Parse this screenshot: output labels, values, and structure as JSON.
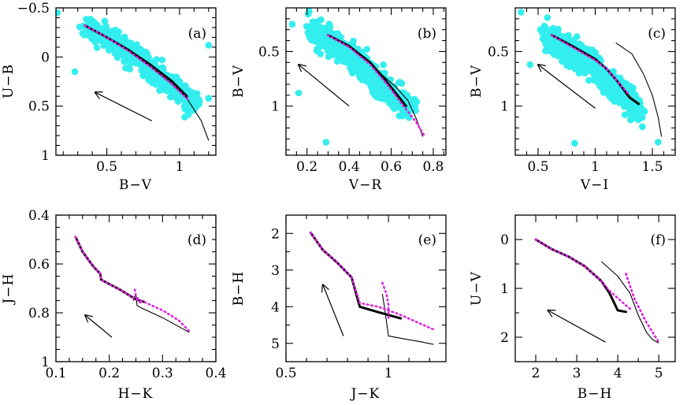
{
  "colors": {
    "points": "#33eeee",
    "model_thick": "#000000",
    "model_dotted": "#dd22dd",
    "model_thin": "#000000",
    "arrow": "#000000"
  },
  "chart_data": [
    {
      "type": "scatter",
      "tag": "(a)",
      "xlabel": "B−V",
      "ylabel": "U−B",
      "xlim": [
        0.15,
        1.25
      ],
      "ylim": [
        -0.5,
        1.0
      ],
      "y_inverted": true,
      "xticks": [
        {
          "v": 0.5,
          "label": "0.5"
        },
        {
          "v": 1.0,
          "label": "1"
        }
      ],
      "xminor": [
        0.2,
        0.3,
        0.4,
        0.6,
        0.7,
        0.8,
        0.9,
        1.1,
        1.2
      ],
      "yticks": [
        {
          "v": -0.5,
          "label": "−0.5"
        },
        {
          "v": 0.0,
          "label": "0"
        },
        {
          "v": 0.5,
          "label": "0.5"
        },
        {
          "v": 1.0,
          "label": "1"
        }
      ],
      "yminor": [
        -0.4,
        -0.3,
        -0.2,
        -0.1,
        0.1,
        0.2,
        0.3,
        0.4,
        0.6,
        0.7,
        0.8,
        0.9
      ],
      "scatter_cloud": {
        "n": 600,
        "seed": 11,
        "x_range": [
          0.35,
          1.12
        ],
        "trend": [
          [
            0.35,
            -0.3
          ],
          [
            0.55,
            -0.15
          ],
          [
            0.75,
            0.05
          ],
          [
            0.95,
            0.3
          ],
          [
            1.1,
            0.48
          ]
        ],
        "spread": 0.1
      },
      "outliers": [
        [
          0.16,
          -0.45
        ],
        [
          0.28,
          0.15
        ],
        [
          1.2,
          0.42
        ],
        [
          1.2,
          -0.12
        ]
      ],
      "model_thick": [
        [
          0.35,
          -0.32
        ],
        [
          0.5,
          -0.2
        ],
        [
          0.65,
          -0.07
        ],
        [
          0.8,
          0.08
        ],
        [
          0.95,
          0.25
        ],
        [
          1.05,
          0.4
        ]
      ],
      "model_dotted": [
        [
          0.35,
          -0.32
        ],
        [
          0.5,
          -0.2
        ],
        [
          0.65,
          -0.06
        ],
        [
          0.8,
          0.1
        ],
        [
          0.95,
          0.28
        ],
        [
          1.07,
          0.45
        ]
      ],
      "model_thin": [
        [
          0.35,
          -0.32
        ],
        [
          0.5,
          -0.2
        ],
        [
          0.65,
          -0.06
        ],
        [
          0.8,
          0.1
        ],
        [
          0.95,
          0.28
        ],
        [
          1.05,
          0.42
        ],
        [
          1.15,
          0.65
        ],
        [
          1.2,
          0.85
        ]
      ],
      "arrow": {
        "from": [
          0.81,
          0.65
        ],
        "to": [
          0.42,
          0.36
        ]
      }
    },
    {
      "type": "scatter",
      "tag": "(b)",
      "xlabel": "V−R",
      "ylabel": "B−V",
      "xlim": [
        0.1,
        0.86
      ],
      "ylim": [
        0.1,
        1.45
      ],
      "y_inverted": true,
      "xticks": [
        {
          "v": 0.2,
          "label": "0.2"
        },
        {
          "v": 0.4,
          "label": "0.4"
        },
        {
          "v": 0.6,
          "label": "0.6"
        },
        {
          "v": 0.8,
          "label": "0.8"
        }
      ],
      "xminor": [
        0.15,
        0.25,
        0.3,
        0.35,
        0.45,
        0.5,
        0.55,
        0.65,
        0.7,
        0.75,
        0.85
      ],
      "yticks": [
        {
          "v": 0.5,
          "label": "0.5"
        },
        {
          "v": 1.0,
          "label": "1"
        }
      ],
      "yminor": [
        0.2,
        0.3,
        0.4,
        0.6,
        0.7,
        0.8,
        0.9,
        1.1,
        1.2,
        1.3,
        1.4
      ],
      "scatter_cloud": {
        "n": 600,
        "seed": 23,
        "x_range": [
          0.22,
          0.7
        ],
        "trend": [
          [
            0.22,
            0.3
          ],
          [
            0.35,
            0.45
          ],
          [
            0.45,
            0.62
          ],
          [
            0.55,
            0.8
          ],
          [
            0.65,
            0.95
          ],
          [
            0.7,
            1.0
          ]
        ],
        "spread": 0.11
      },
      "outliers": [
        [
          0.13,
          0.25
        ],
        [
          0.16,
          0.88
        ],
        [
          0.29,
          1.33
        ],
        [
          0.21,
          0.13
        ]
      ],
      "model_thick": [
        [
          0.3,
          0.35
        ],
        [
          0.4,
          0.45
        ],
        [
          0.5,
          0.6
        ],
        [
          0.58,
          0.78
        ],
        [
          0.65,
          0.95
        ],
        [
          0.67,
          1.0
        ]
      ],
      "model_dotted": [
        [
          0.3,
          0.35
        ],
        [
          0.4,
          0.46
        ],
        [
          0.5,
          0.62
        ],
        [
          0.58,
          0.8
        ],
        [
          0.65,
          0.98
        ],
        [
          0.72,
          1.15
        ],
        [
          0.76,
          1.28
        ]
      ],
      "model_thin": [
        [
          0.3,
          0.35
        ],
        [
          0.4,
          0.45
        ],
        [
          0.5,
          0.6
        ],
        [
          0.56,
          0.72
        ],
        [
          0.62,
          0.82
        ],
        [
          0.68,
          0.95
        ],
        [
          0.72,
          1.12
        ],
        [
          0.75,
          1.28
        ]
      ],
      "arrow": {
        "from": [
          0.4,
          1.0
        ],
        "to": [
          0.16,
          0.62
        ]
      }
    },
    {
      "type": "scatter",
      "tag": "(c)",
      "xlabel": "V−I",
      "ylabel": "B−V",
      "xlim": [
        0.3,
        1.7
      ],
      "ylim": [
        0.1,
        1.45
      ],
      "y_inverted": true,
      "xticks": [
        {
          "v": 0.5,
          "label": "0.5"
        },
        {
          "v": 1.0,
          "label": "1"
        },
        {
          "v": 1.5,
          "label": "1.5"
        }
      ],
      "xminor": [
        0.4,
        0.6,
        0.7,
        0.8,
        0.9,
        1.1,
        1.2,
        1.3,
        1.4,
        1.6
      ],
      "yticks": [
        {
          "v": 0.5,
          "label": "0.5"
        },
        {
          "v": 1.0,
          "label": "1"
        }
      ],
      "yminor": [
        0.2,
        0.3,
        0.4,
        0.6,
        0.7,
        0.8,
        0.9,
        1.1,
        1.2,
        1.3,
        1.4
      ],
      "scatter_cloud": {
        "n": 600,
        "seed": 37,
        "x_range": [
          0.55,
          1.4
        ],
        "trend": [
          [
            0.55,
            0.35
          ],
          [
            0.75,
            0.48
          ],
          [
            0.95,
            0.62
          ],
          [
            1.15,
            0.8
          ],
          [
            1.3,
            0.95
          ],
          [
            1.4,
            1.05
          ]
        ],
        "spread": 0.11
      },
      "outliers": [
        [
          0.35,
          0.14
        ],
        [
          0.43,
          0.62
        ],
        [
          0.82,
          1.34
        ],
        [
          1.55,
          1.33
        ]
      ],
      "model_thick": [
        [
          0.62,
          0.35
        ],
        [
          0.8,
          0.45
        ],
        [
          1.0,
          0.57
        ],
        [
          1.1,
          0.66
        ],
        [
          1.2,
          0.78
        ],
        [
          1.3,
          0.92
        ],
        [
          1.38,
          0.98
        ]
      ],
      "model_dotted": [
        [
          0.62,
          0.35
        ],
        [
          0.8,
          0.46
        ],
        [
          1.0,
          0.58
        ],
        [
          1.1,
          0.66
        ],
        [
          1.2,
          0.78
        ],
        [
          1.3,
          0.9
        ]
      ],
      "model_thin": [
        [
          1.18,
          0.42
        ],
        [
          1.32,
          0.52
        ],
        [
          1.42,
          0.7
        ],
        [
          1.5,
          0.9
        ],
        [
          1.55,
          1.1
        ],
        [
          1.58,
          1.28
        ]
      ],
      "arrow": {
        "from": [
          1.0,
          1.02
        ],
        "to": [
          0.5,
          0.62
        ]
      }
    },
    {
      "type": "line",
      "tag": "(d)",
      "xlabel": "H−K",
      "ylabel": "J−H",
      "xlim": [
        0.1,
        0.4
      ],
      "ylim": [
        0.4,
        1.0
      ],
      "y_inverted": true,
      "xticks": [
        {
          "v": 0.1,
          "label": "0.1"
        },
        {
          "v": 0.2,
          "label": "0.2"
        },
        {
          "v": 0.3,
          "label": "0.3"
        },
        {
          "v": 0.4,
          "label": "0.4"
        }
      ],
      "xminor": [
        0.125,
        0.15,
        0.175,
        0.225,
        0.25,
        0.275,
        0.325,
        0.35,
        0.375
      ],
      "yticks": [
        {
          "v": 0.4,
          "label": "0.4"
        },
        {
          "v": 0.6,
          "label": "0.6"
        },
        {
          "v": 0.8,
          "label": "0.8"
        },
        {
          "v": 1.0,
          "label": "1"
        }
      ],
      "yminor": [
        0.45,
        0.5,
        0.55,
        0.65,
        0.7,
        0.75,
        0.85,
        0.9,
        0.95
      ],
      "model_thick": [
        [
          0.137,
          0.49
        ],
        [
          0.15,
          0.55
        ],
        [
          0.17,
          0.61
        ],
        [
          0.183,
          0.64
        ],
        [
          0.185,
          0.665
        ],
        [
          0.22,
          0.705
        ],
        [
          0.25,
          0.745
        ],
        [
          0.265,
          0.755
        ]
      ],
      "model_dotted": [
        [
          0.137,
          0.49
        ],
        [
          0.15,
          0.55
        ],
        [
          0.17,
          0.61
        ],
        [
          0.183,
          0.64
        ],
        [
          0.185,
          0.665
        ],
        [
          0.22,
          0.705
        ],
        [
          0.25,
          0.745
        ],
        [
          0.265,
          0.755
        ],
        [
          0.3,
          0.79
        ],
        [
          0.33,
          0.83
        ],
        [
          0.35,
          0.875
        ]
      ],
      "model_dotted_b": [
        [
          0.248,
          0.705
        ],
        [
          0.25,
          0.73
        ],
        [
          0.258,
          0.758
        ]
      ],
      "model_thin": [
        [
          0.245,
          0.75
        ],
        [
          0.25,
          0.72
        ],
        [
          0.252,
          0.77
        ],
        [
          0.26,
          0.78
        ],
        [
          0.3,
          0.82
        ],
        [
          0.35,
          0.88
        ]
      ],
      "arrow": {
        "from": [
          0.205,
          0.9
        ],
        "to": [
          0.155,
          0.81
        ]
      }
    },
    {
      "type": "line",
      "tag": "(e)",
      "xlabel": "J−K",
      "ylabel": "B−H",
      "xlim": [
        0.5,
        1.28
      ],
      "ylim": [
        1.5,
        5.5
      ],
      "y_inverted": true,
      "xticks": [
        {
          "v": 0.5,
          "label": "0.5"
        },
        {
          "v": 1.0,
          "label": "1"
        }
      ],
      "xminor": [
        0.6,
        0.7,
        0.8,
        0.9,
        1.1,
        1.2
      ],
      "yticks": [
        {
          "v": 2,
          "label": "2"
        },
        {
          "v": 3,
          "label": "3"
        },
        {
          "v": 4,
          "label": "4"
        },
        {
          "v": 5,
          "label": "5"
        }
      ],
      "yminor": [
        2.5,
        3.5,
        4.5
      ],
      "model_thick": [
        [
          0.62,
          1.98
        ],
        [
          0.68,
          2.45
        ],
        [
          0.75,
          2.8
        ],
        [
          0.82,
          3.2
        ],
        [
          0.86,
          4.0
        ],
        [
          0.95,
          4.15
        ],
        [
          1.06,
          4.32
        ]
      ],
      "model_dotted": [
        [
          0.62,
          1.98
        ],
        [
          0.68,
          2.45
        ],
        [
          0.75,
          2.8
        ],
        [
          0.82,
          3.2
        ],
        [
          0.86,
          3.9
        ],
        [
          0.95,
          4.0
        ],
        [
          1.05,
          4.2
        ],
        [
          1.15,
          4.45
        ],
        [
          1.22,
          4.62
        ]
      ],
      "model_dotted_b": [
        [
          0.97,
          3.35
        ],
        [
          0.99,
          3.65
        ],
        [
          1.0,
          3.95
        ],
        [
          1.0,
          4.3
        ]
      ],
      "model_thin": [
        [
          0.97,
          3.65
        ],
        [
          0.98,
          4.0
        ],
        [
          1.0,
          4.8
        ],
        [
          1.05,
          4.85
        ],
        [
          1.15,
          4.95
        ],
        [
          1.22,
          5.03
        ]
      ],
      "arrow": {
        "from": [
          0.78,
          4.8
        ],
        "to": [
          0.68,
          3.4
        ]
      }
    },
    {
      "type": "line",
      "tag": "(f)",
      "xlabel": "B−H",
      "ylabel": "U−V",
      "xlim": [
        1.5,
        5.4
      ],
      "ylim": [
        -0.5,
        2.5
      ],
      "y_inverted": true,
      "xticks": [
        {
          "v": 2,
          "label": "2"
        },
        {
          "v": 3,
          "label": "3"
        },
        {
          "v": 4,
          "label": "4"
        },
        {
          "v": 5,
          "label": "5"
        }
      ],
      "xminor": [
        2.5,
        3.5,
        4.5
      ],
      "yticks": [
        {
          "v": 0,
          "label": "0"
        },
        {
          "v": 1,
          "label": "1"
        },
        {
          "v": 2,
          "label": "2"
        }
      ],
      "yminor": [
        -0.5,
        0.5,
        1.5,
        2.5
      ],
      "model_thick": [
        [
          2.0,
          0.0
        ],
        [
          2.4,
          0.2
        ],
        [
          2.8,
          0.35
        ],
        [
          3.2,
          0.55
        ],
        [
          3.6,
          0.85
        ],
        [
          3.8,
          1.1
        ],
        [
          4.0,
          1.45
        ],
        [
          4.2,
          1.48
        ]
      ],
      "model_dotted": [
        [
          2.0,
          0.0
        ],
        [
          2.4,
          0.2
        ],
        [
          2.8,
          0.35
        ],
        [
          3.2,
          0.55
        ],
        [
          3.6,
          0.85
        ],
        [
          3.8,
          1.05
        ],
        [
          4.0,
          1.2
        ],
        [
          4.2,
          1.35
        ],
        [
          4.35,
          1.45
        ]
      ],
      "model_dotted_b": [
        [
          4.2,
          0.7
        ],
        [
          4.4,
          1.2
        ],
        [
          4.7,
          1.7
        ],
        [
          5.0,
          2.1
        ]
      ],
      "model_thin": [
        [
          3.6,
          0.45
        ],
        [
          4.0,
          0.75
        ],
        [
          4.3,
          1.1
        ],
        [
          4.5,
          1.55
        ],
        [
          4.7,
          1.9
        ],
        [
          4.85,
          2.05
        ],
        [
          5.0,
          2.12
        ]
      ],
      "arrow": {
        "from": [
          3.7,
          2.1
        ],
        "to": [
          2.3,
          1.45
        ]
      }
    }
  ]
}
